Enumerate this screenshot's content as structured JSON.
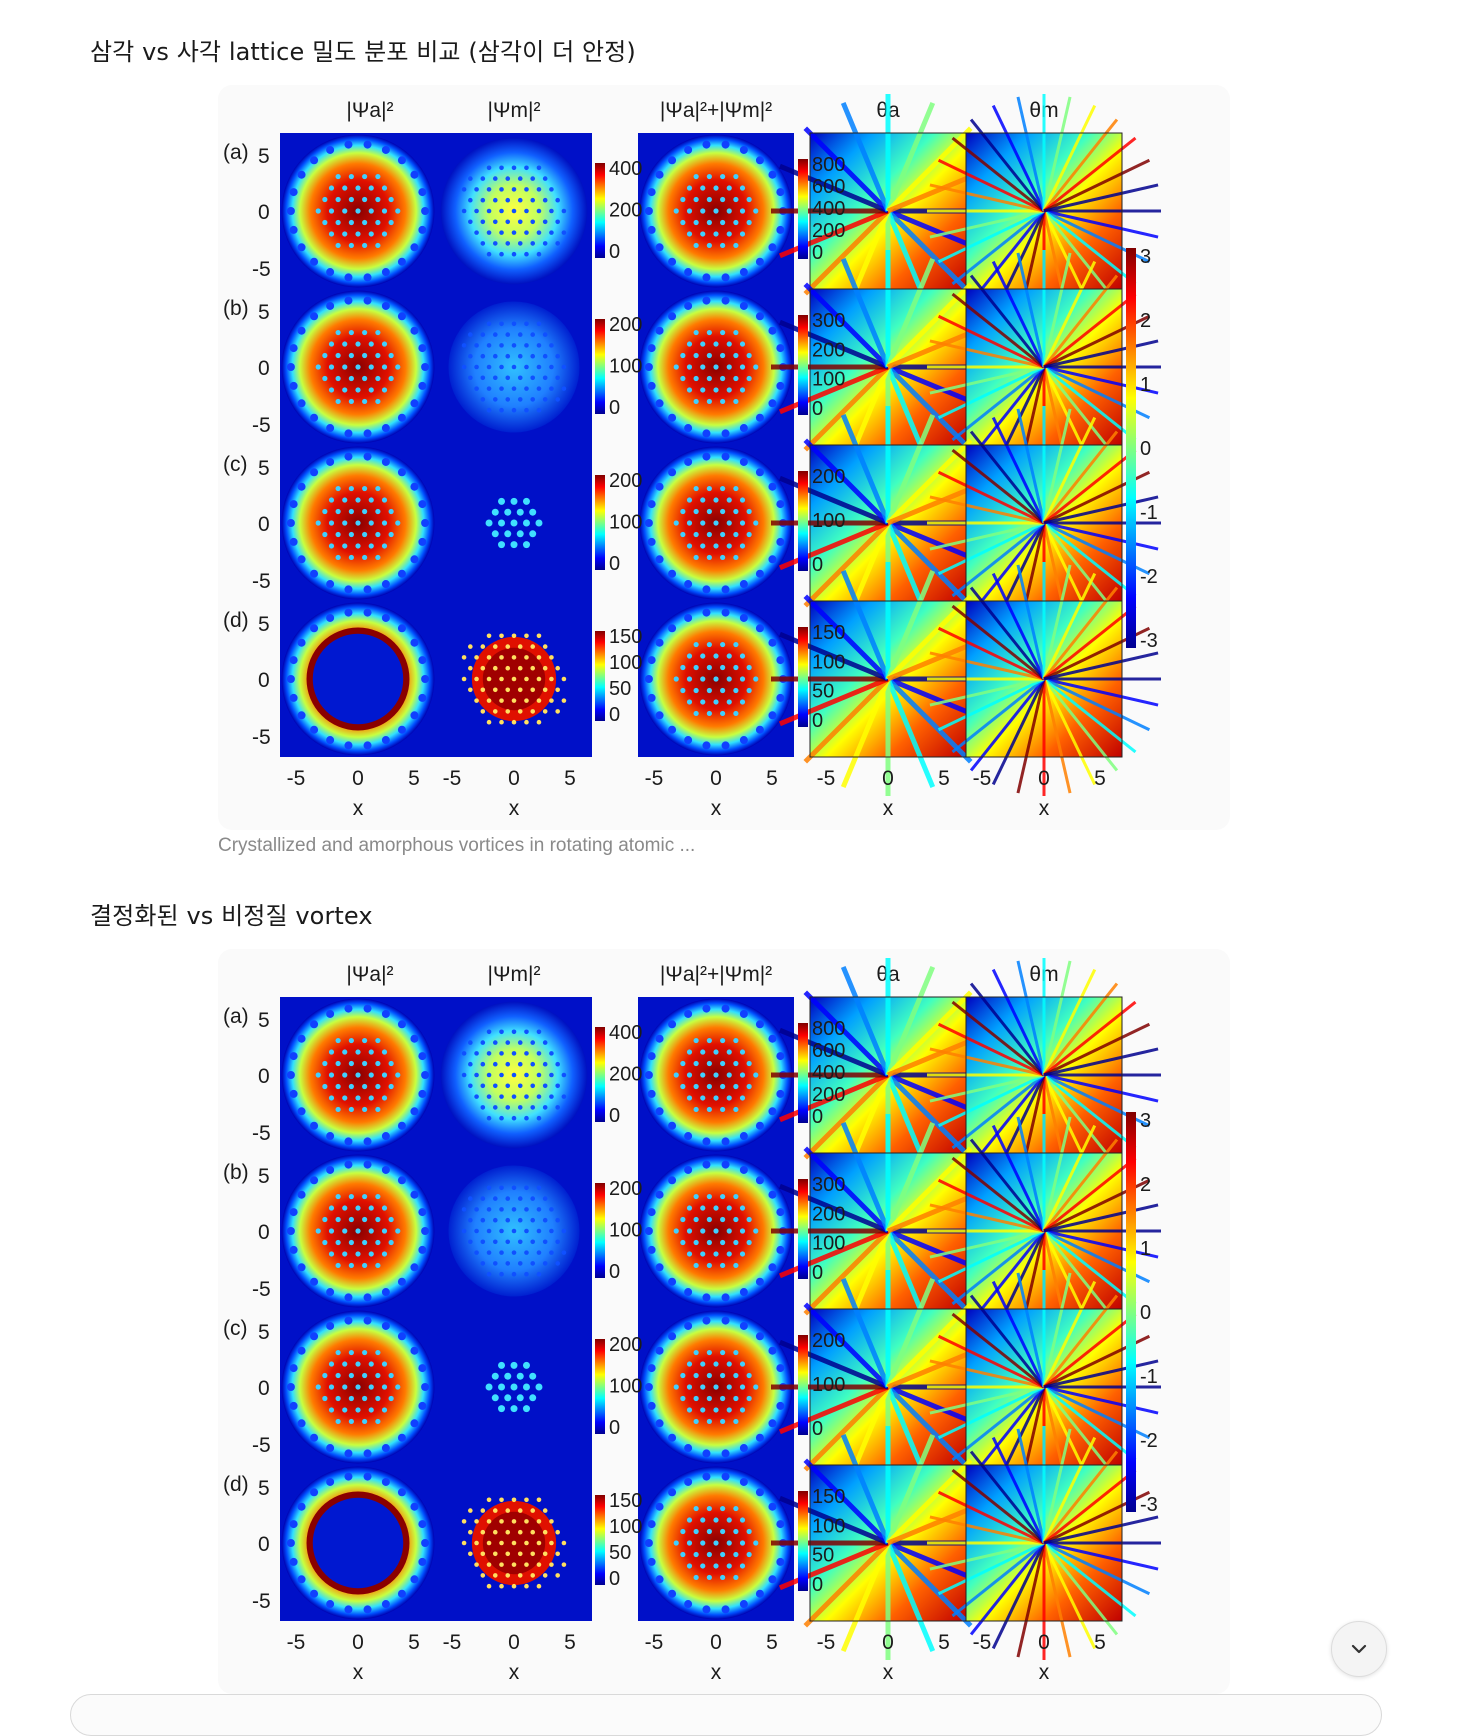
{
  "sections": [
    {
      "title": "삼각 vs 사각 lattice 밀도 분포 비교 (삼각이 더 안정)",
      "caption": "Crystallized and amorphous vortices in rotating atomic ...",
      "figure": {
        "column_headers": [
          "|Ψa|²",
          "|Ψm|²",
          "|Ψa|²+|Ψm|²",
          "θa",
          "θm"
        ],
        "row_labels": [
          "(a)",
          "(b)",
          "(c)",
          "(d)"
        ],
        "y_ticks": [
          "5",
          "0",
          "-5"
        ],
        "x_ticks": [
          "-5",
          "0",
          "5"
        ],
        "x_label": "x",
        "colorbars_psi_m": [
          [
            "400",
            "200",
            "0"
          ],
          [
            "200",
            "100",
            "0"
          ],
          [
            "200",
            "100",
            "0"
          ],
          [
            "150",
            "100",
            "50",
            "0"
          ]
        ],
        "colorbars_sum": [
          [
            "800",
            "600",
            "400",
            "200",
            "0"
          ],
          [
            "300",
            "200",
            "100",
            "0"
          ],
          [
            "200",
            "100",
            "0"
          ],
          [
            "150",
            "100",
            "50",
            "0"
          ]
        ],
        "phase_colorbar": [
          "3",
          "2",
          "1",
          "0",
          "-1",
          "-2",
          "-3"
        ]
      }
    },
    {
      "title": "결정화된 vs 비정질 vortex",
      "figure": {
        "column_headers": [
          "|Ψa|²",
          "|Ψm|²",
          "|Ψa|²+|Ψm|²",
          "θa",
          "θm"
        ],
        "row_labels": [
          "(a)",
          "(b)",
          "(c)",
          "(d)"
        ],
        "y_ticks": [
          "5",
          "0",
          "-5"
        ],
        "x_ticks": [
          "-5",
          "0",
          "5"
        ],
        "x_label": "x",
        "colorbars_psi_m": [
          [
            "400",
            "200",
            "0"
          ],
          [
            "200",
            "100",
            "0"
          ],
          [
            "200",
            "100",
            "0"
          ],
          [
            "150",
            "100",
            "50",
            "0"
          ]
        ],
        "colorbars_sum": [
          [
            "800",
            "600",
            "400",
            "200",
            "0"
          ],
          [
            "300",
            "200",
            "100",
            "0"
          ],
          [
            "200",
            "100",
            "0"
          ],
          [
            "150",
            "100",
            "50",
            "0"
          ]
        ],
        "phase_colorbar": [
          "3",
          "2",
          "1",
          "0",
          "-1",
          "-2",
          "-3"
        ]
      }
    }
  ],
  "colors": {
    "jet_dark_blue": "#00008f",
    "jet_cyan": "#00ffff",
    "jet_yellow": "#ffff00",
    "jet_red": "#ff0000",
    "jet_dark_red": "#800000"
  },
  "icons": {
    "scroll_down": "chevron-down-icon"
  }
}
